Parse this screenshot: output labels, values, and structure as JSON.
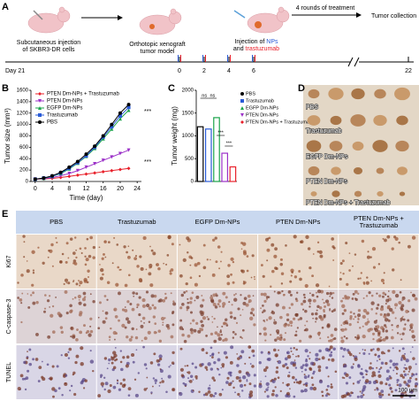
{
  "panel_labels": [
    "A",
    "B",
    "C",
    "D",
    "E"
  ],
  "timeline": {
    "steps": [
      [
        "Subcutaneous injection",
        "of SKBR3-DR cells"
      ],
      [
        "Orthotopic xenograft",
        "tumor model"
      ]
    ],
    "injection": [
      "Injection of",
      "NPs",
      "and",
      "trastuzumab"
    ],
    "rounds": "4 rounds of treatment",
    "collection": "Tumor collection",
    "start": "Day 21",
    "ticks": [
      0,
      2,
      4,
      6,
      22
    ]
  },
  "chart_data": [
    {
      "type": "line",
      "x_label": "Time (day)",
      "y_label": "Tumor size (mm³)",
      "x": [
        0,
        2,
        4,
        6,
        8,
        10,
        12,
        14,
        16,
        18,
        20,
        22
      ],
      "xlim": [
        -1,
        25
      ],
      "xticks": [
        0,
        4,
        8,
        12,
        16,
        20,
        24
      ],
      "ylim": [
        0,
        1600
      ],
      "yticks": [
        0,
        200,
        400,
        600,
        800,
        1000,
        1200,
        1400,
        1600
      ],
      "series": [
        {
          "name": "PTEN Dm-NPs + Trastuzumab",
          "color": "#e8202a",
          "marker": "diamond",
          "values": [
            40,
            45,
            55,
            70,
            90,
            110,
            130,
            150,
            170,
            190,
            210,
            230
          ]
        },
        {
          "name": "PTEN Dm-NPs",
          "color": "#9b30c8",
          "marker": "triangle-down",
          "values": [
            40,
            50,
            70,
            100,
            140,
            190,
            250,
            310,
            370,
            430,
            490,
            550
          ]
        },
        {
          "name": "EGFP Dm-NPs",
          "color": "#1aa34a",
          "marker": "triangle",
          "values": [
            40,
            55,
            90,
            140,
            220,
            320,
            440,
            580,
            750,
            920,
            1100,
            1250
          ]
        },
        {
          "name": "Trastuzumab",
          "color": "#2a5bd7",
          "marker": "square",
          "values": [
            40,
            60,
            90,
            150,
            230,
            330,
            450,
            600,
            780,
            960,
            1150,
            1300
          ]
        },
        {
          "name": "PBS",
          "color": "#000000",
          "marker": "circle",
          "values": [
            40,
            60,
            100,
            160,
            250,
            350,
            480,
            620,
            800,
            1000,
            1200,
            1350
          ]
        }
      ],
      "annotations": [
        "***",
        "***"
      ]
    },
    {
      "type": "bar",
      "y_label": "Tumor weight (mg)",
      "categories": [
        "PBS",
        "Trastuzumab",
        "EGFP Dm-NPs",
        "PTEN Dm-NPs",
        "PTEN Dm-NPs + Trastuzumab"
      ],
      "values": [
        1200,
        1150,
        1400,
        620,
        320
      ],
      "colors": [
        "#000000",
        "#2a5bd7",
        "#1aa34a",
        "#9b30c8",
        "#e8202a"
      ],
      "markers": [
        "circle",
        "square",
        "triangle",
        "triangle-down",
        "diamond"
      ],
      "ylim": [
        0,
        2000
      ],
      "yticks": [
        0,
        500,
        1000,
        1500,
        2000
      ],
      "annotations": [
        "ns",
        "ns",
        "***",
        "***"
      ]
    }
  ],
  "photo": {
    "labels": [
      "PBS",
      "Trastuzumab",
      "EGFP Dm-NPs",
      "PTEN Dm-NPs",
      "PTEN Dm-NPs + Trastuzumab"
    ]
  },
  "staining": {
    "columns": [
      [
        "PBS"
      ],
      [
        "Trastuzumab"
      ],
      [
        "EGFP Dm-NPs"
      ],
      [
        "PTEN Dm-NPs"
      ],
      [
        "PTEN Dm-NPs +",
        "Trastuzumab"
      ]
    ],
    "rows": [
      "Ki67",
      "C-caspase-3",
      "TUNEL"
    ],
    "scale": "100 μm"
  }
}
